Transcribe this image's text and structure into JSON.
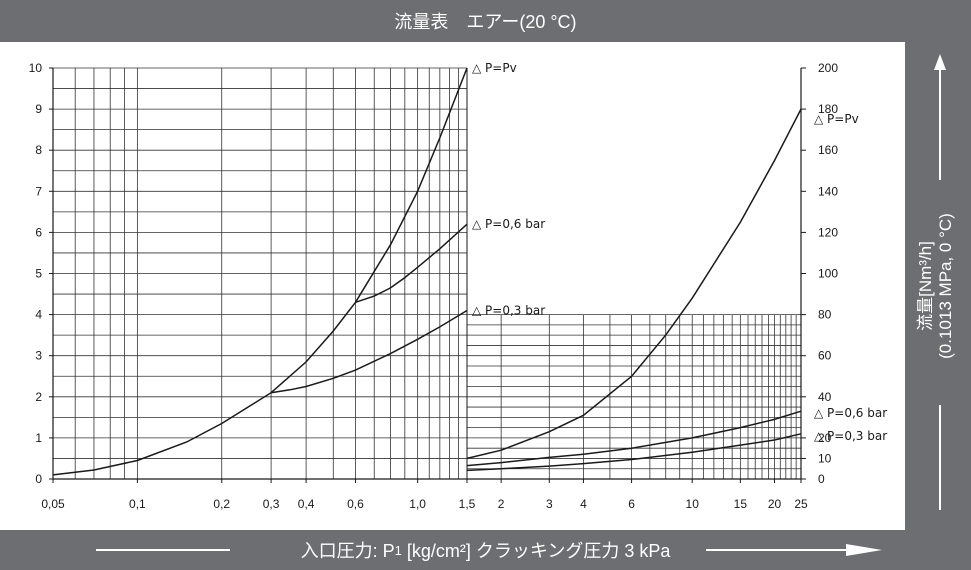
{
  "chart_data": {
    "title": "流量表　エアー(20 °C)",
    "xlabel": "入口圧力: P",
    "xlabel_sub": "1",
    "xlabel_tail": "[kg/cm²] クラッキング圧力 3 kPa",
    "ylabel": "流量[Nm³/h]",
    "ylabel_sub": "(0.1013 MPa, 0 °C)",
    "colors": {
      "frame": "#6d6e71",
      "line": "#1a1a1a",
      "grid": "#333333"
    },
    "panels": [
      {
        "type": "line",
        "x_scale": "log",
        "xlim": [
          0.05,
          1.5
        ],
        "ylim": [
          0,
          10
        ],
        "x_ticks": [
          "0,05",
          "0,1",
          "0,2",
          "0,3",
          "0,4",
          "0,6",
          "1,0",
          "1,5"
        ],
        "y_ticks": [
          "0",
          "1",
          "2",
          "3",
          "4",
          "5",
          "6",
          "7",
          "8",
          "9",
          "10"
        ],
        "series": [
          {
            "name": "△ P=Pv",
            "x": [
              0.05,
              0.07,
              0.1,
              0.15,
              0.2,
              0.3,
              0.4,
              0.5,
              0.6,
              0.8,
              1.0,
              1.2,
              1.5
            ],
            "y": [
              0.1,
              0.22,
              0.45,
              0.9,
              1.35,
              2.1,
              2.85,
              3.6,
              4.3,
              5.7,
              7.0,
              8.3,
              10.0
            ]
          },
          {
            "name": "△ P=0,6 bar",
            "x": [
              0.6,
              0.7,
              0.8,
              0.9,
              1.0,
              1.2,
              1.5
            ],
            "y": [
              4.3,
              4.45,
              4.65,
              4.9,
              5.15,
              5.6,
              6.2
            ]
          },
          {
            "name": "△ P=0,3 bar",
            "x": [
              0.3,
              0.35,
              0.4,
              0.5,
              0.6,
              0.8,
              1.0,
              1.2,
              1.5
            ],
            "y": [
              2.1,
              2.17,
              2.25,
              2.45,
              2.65,
              3.05,
              3.4,
              3.7,
              4.1
            ]
          }
        ]
      },
      {
        "type": "line",
        "x_scale": "log",
        "xlim": [
          1.5,
          25
        ],
        "ylim": [
          0,
          200
        ],
        "x_ticks": [
          "2",
          "3",
          "4",
          "6",
          "10",
          "15",
          "20",
          "25"
        ],
        "y_ticks": [
          "0",
          "10",
          "20",
          "40",
          "60",
          "80",
          "100",
          "120",
          "140",
          "160",
          "180",
          "200"
        ],
        "series": [
          {
            "name": "△ P=Pv",
            "x": [
              1.5,
              2,
              3,
              4,
              6,
              8,
              10,
              15,
              20,
              25
            ],
            "y": [
              10,
              14,
              23,
              31,
              50,
              70,
              88,
              125,
              155,
              180
            ]
          },
          {
            "name": "△ P=0,6 bar",
            "x": [
              1.5,
              2,
              3,
              4,
              6,
              10,
              15,
              20,
              25
            ],
            "y": [
              6.5,
              8,
              10.5,
              12,
              15,
              20,
              25,
              29,
              33
            ]
          },
          {
            "name": "△ P=0,3 bar",
            "x": [
              1.5,
              2,
              3,
              4,
              6,
              10,
              15,
              20,
              25
            ],
            "y": [
              4.2,
              5,
              6.3,
              7.5,
              9.5,
              13,
              16.5,
              19,
              22
            ]
          }
        ]
      }
    ]
  }
}
